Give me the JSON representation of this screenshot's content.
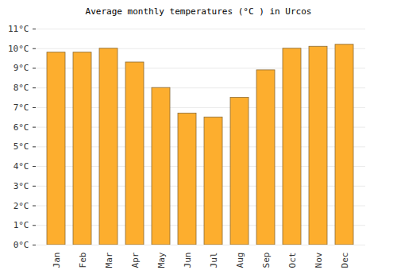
{
  "chart_data": {
    "type": "bar",
    "title": "Average monthly temperatures (°C ) in Urcos",
    "categories": [
      "Jan",
      "Feb",
      "Mar",
      "Apr",
      "May",
      "Jun",
      "Jul",
      "Aug",
      "Sep",
      "Oct",
      "Nov",
      "Dec"
    ],
    "values": [
      9.8,
      9.8,
      10.0,
      9.3,
      8.0,
      6.7,
      6.5,
      7.5,
      8.9,
      10.0,
      10.1,
      10.2
    ],
    "color": "#fdae2e",
    "ylim": [
      0,
      11
    ],
    "yticks": [
      {
        "value": 0,
        "label": "0°C"
      },
      {
        "value": 1,
        "label": "1°C"
      },
      {
        "value": 2,
        "label": "2°C"
      },
      {
        "value": 3,
        "label": "3°C"
      },
      {
        "value": 4,
        "label": "4°C"
      },
      {
        "value": 5,
        "label": "5°C"
      },
      {
        "value": 6,
        "label": "6°C"
      },
      {
        "value": 7,
        "label": "7°C"
      },
      {
        "value": 8,
        "label": "8°C"
      },
      {
        "value": 9,
        "label": "9°C"
      },
      {
        "value": 10,
        "label": "10°C"
      },
      {
        "value": 11,
        "label": "11°C"
      }
    ],
    "grid": true
  }
}
